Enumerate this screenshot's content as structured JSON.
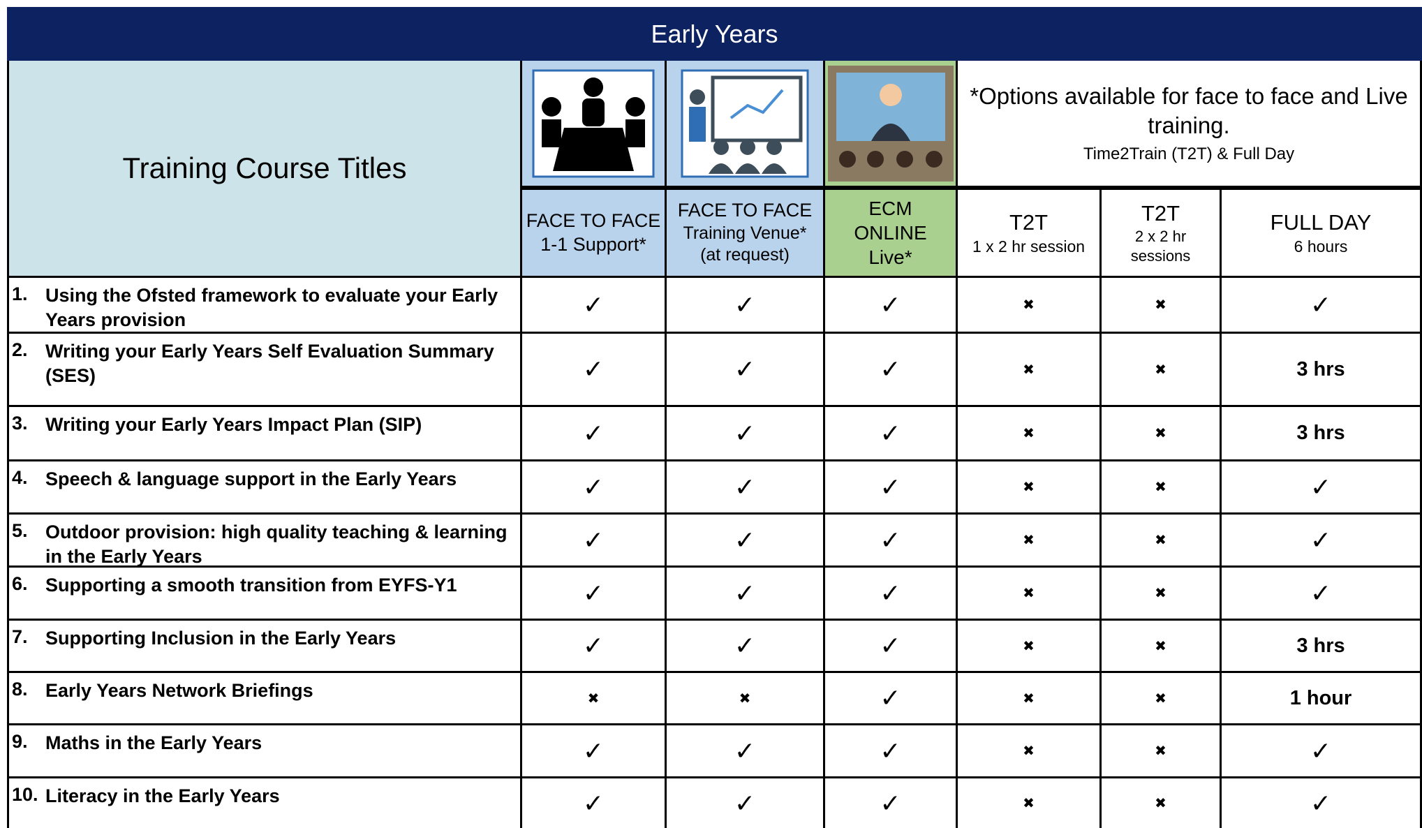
{
  "header": {
    "title": "Early Years",
    "titles_heading": "Training Course Titles",
    "note": {
      "main": "*Options available for face to face and Live training.",
      "sub": "Time2Train (T2T) & Full Day"
    },
    "columns": [
      {
        "lines": [
          "FACE TO FACE",
          "1-1 Support*"
        ]
      },
      {
        "lines": [
          "FACE TO FACE",
          "Training Venue*",
          "(at request)"
        ]
      },
      {
        "lines": [
          "ECM",
          "ONLINE",
          "Live*"
        ]
      },
      {
        "lines": [
          "T2T",
          "1 x 2 hr session"
        ]
      },
      {
        "lines": [
          "T2T",
          "2 x 2 hr",
          "sessions"
        ]
      },
      {
        "lines": [
          "FULL DAY",
          "6 hours"
        ]
      }
    ]
  },
  "rows": [
    {
      "number": "1.",
      "title": "Using the Ofsted framework to evaluate your Early Years provision",
      "cells": [
        "✓",
        "✓",
        "✓",
        "✖",
        "✖",
        "✓"
      ]
    },
    {
      "number": "2.",
      "title": "Writing your Early Years Self Evaluation Summary (SES)",
      "cells": [
        "✓",
        "✓",
        "✓",
        "✖",
        "✖",
        "3 hrs"
      ]
    },
    {
      "number": "3.",
      "title": "Writing your Early Years Impact Plan (SIP)",
      "cells": [
        "✓",
        "✓",
        "✓",
        "✖",
        "✖",
        "3 hrs"
      ]
    },
    {
      "number": "4.",
      "title": "Speech & language support in the Early Years",
      "cells": [
        "✓",
        "✓",
        "✓",
        "✖",
        "✖",
        "✓"
      ]
    },
    {
      "number": "5.",
      "title": "Outdoor provision: high quality teaching & learning in the Early Years",
      "cells": [
        "✓",
        "✓",
        "✓",
        "✖",
        "✖",
        "✓"
      ]
    },
    {
      "number": "6.",
      "title": "Supporting a smooth transition from EYFS-Y1",
      "cells": [
        "✓",
        "✓",
        "✓",
        "✖",
        "✖",
        "✓"
      ]
    },
    {
      "number": "7.",
      "title": "Supporting Inclusion in the Early Years",
      "cells": [
        "✓",
        "✓",
        "✓",
        "✖",
        "✖",
        "3 hrs"
      ]
    },
    {
      "number": "8.",
      "title": "Early Years Network Briefings",
      "cells": [
        "✖",
        "✖",
        "✓",
        "✖",
        "✖",
        "1 hour"
      ]
    },
    {
      "number": "9.",
      "title": "Maths in the Early Years",
      "cells": [
        "✓",
        "✓",
        "✓",
        "✖",
        "✖",
        "✓"
      ]
    },
    {
      "number": "10.",
      "title": "Literacy in the Early Years",
      "cells": [
        "✓",
        "✓",
        "✓",
        "✖",
        "✖",
        "✓"
      ]
    }
  ]
}
